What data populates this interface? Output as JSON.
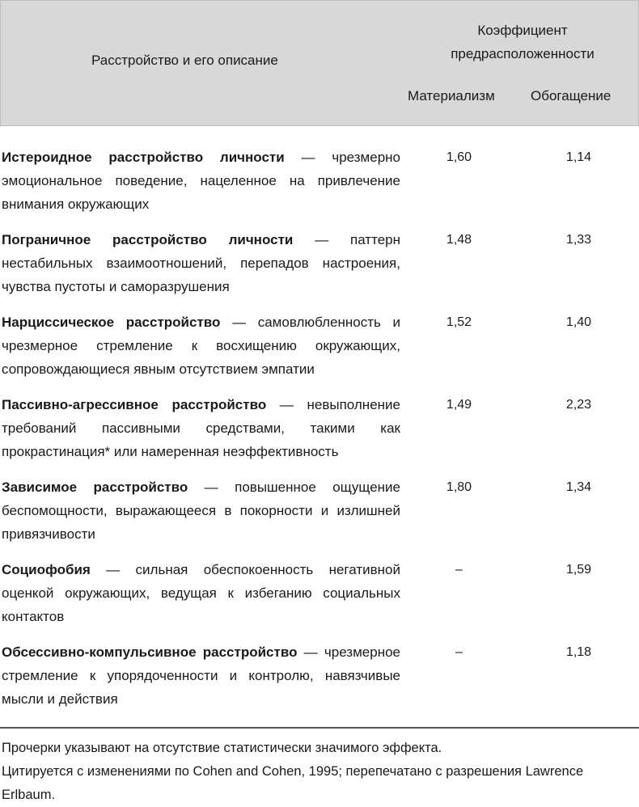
{
  "header": {
    "col_description": "Расстройство и его описание",
    "group_label": "Коэффициент предрасположенности",
    "col_materialism": "Материализм",
    "col_enrichment": "Обогащение"
  },
  "rows": [
    {
      "term": "Истероидное расстройство личности",
      "desc": " — чрезмерно эмоциональное поведение, нацеленное на привлечение внимания окружающих",
      "materialism": "1,60",
      "enrichment": "1,14"
    },
    {
      "term": "Пограничное расстройство личности",
      "desc": " — паттерн нестабильных взаимоотношений, перепадов настроения, чувства пустоты и саморазрушения",
      "materialism": "1,48",
      "enrichment": "1,33"
    },
    {
      "term": "Нарциссическое расстройство",
      "desc": " — самовлюбленность и чрезмерное стремление к восхищению окружающих, сопровождающиеся явным отсутствием эмпатии",
      "materialism": "1,52",
      "enrichment": "1,40"
    },
    {
      "term": "Пассивно-агрессивное расстройство",
      "desc": " — невыполнение требований пассивными средствами, такими как прокрастинация* или намеренная неэффективность",
      "materialism": "1,49",
      "enrichment": "2,23"
    },
    {
      "term": "Зависимое расстройство",
      "desc": " — повышенное ощущение беспомощности, выражающееся в покорности и излишней привязчивости",
      "materialism": "1,80",
      "enrichment": "1,34"
    },
    {
      "term": "Социофобия",
      "desc": " — сильная обеспокоенность негативной оценкой окружающих, ведущая к избеганию социальных контактов",
      "materialism": "–",
      "enrichment": "1,59"
    },
    {
      "term": "Обсессивно-компульсивное расстройство",
      "desc": " — чрезмерное стремление к упорядоченности и контролю, навязчивые мысли и действия",
      "materialism": "–",
      "enrichment": "1,18"
    }
  ],
  "footer": {
    "note1": "Прочерки указывают на отсутствие статистически значимого эффекта.",
    "note2": "Цитируется с изменениями по Cohen and Cohen, 1995; перепечатано с разрешения Lawrence Erlbaum."
  }
}
